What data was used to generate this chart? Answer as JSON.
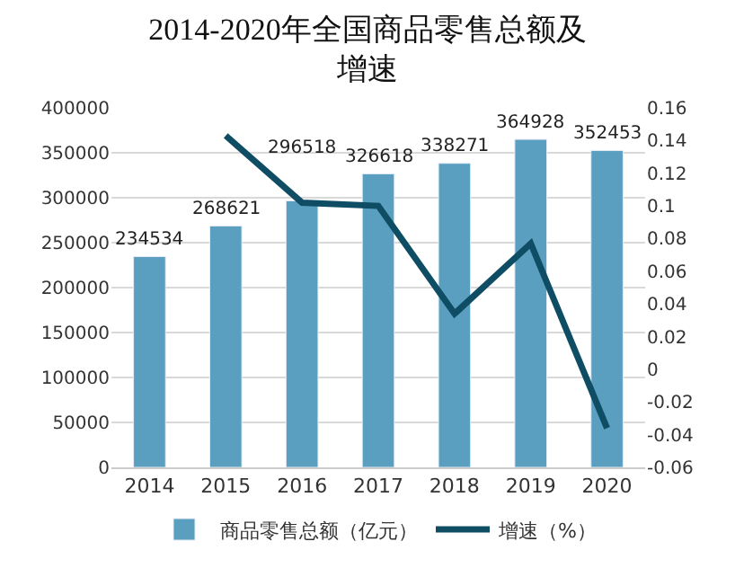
{
  "chart_data": {
    "type": "bar",
    "title": "2014-2020年全国商品零售总额及增速",
    "categories": [
      "2014",
      "2015",
      "2016",
      "2017",
      "2018",
      "2019",
      "2020"
    ],
    "series": [
      {
        "name": "商品零售总额（亿元）",
        "color": "#5a9ec0",
        "values": [
          234534,
          268621,
          296518,
          326618,
          338271,
          364928,
          352453
        ],
        "data_labels": true
      },
      {
        "name": "增速（%）",
        "type": "line",
        "axis": "y2",
        "color": "#0e4d64",
        "values": [
          null,
          0.143,
          0.102,
          0.1,
          0.034,
          0.077,
          -0.036
        ],
        "marker": "none"
      }
    ],
    "ylim": [
      0,
      400000
    ],
    "yticks": [
      0,
      50000,
      100000,
      150000,
      200000,
      250000,
      300000,
      350000,
      400000
    ],
    "y2lim": [
      -0.06,
      0.16
    ],
    "y2ticks": [
      -0.06,
      -0.04,
      -0.02,
      0,
      0.02,
      0.04,
      0.06,
      0.08,
      0.1,
      0.12,
      0.14,
      0.16
    ],
    "grid": "y",
    "legend": "bottom"
  }
}
